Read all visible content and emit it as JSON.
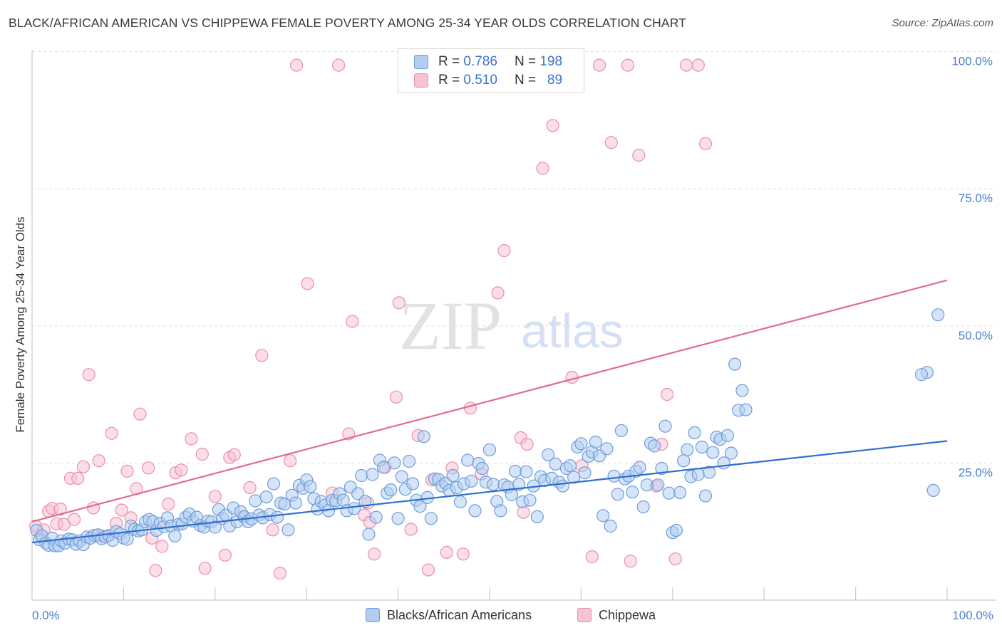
{
  "title": "BLACK/AFRICAN AMERICAN VS CHIPPEWA FEMALE POVERTY AMONG 25-34 YEAR OLDS CORRELATION CHART",
  "source": "Source: ZipAtlas.com",
  "watermark": {
    "zip": "ZIP",
    "atlas": "atlas"
  },
  "legend_top": {
    "rows": [
      {
        "r_label": "R =",
        "r_value": "0.786",
        "n_label": "N =",
        "n_value": "198"
      },
      {
        "r_label": "R =",
        "r_value": "0.510",
        "n_label": "N =",
        "n_value": "89"
      }
    ]
  },
  "legend_bottom": {
    "items": [
      "Blacks/African Americans",
      "Chippewa"
    ]
  },
  "colors": {
    "blue_fill": "#b3cdf0",
    "blue_stroke": "#6f9ddb",
    "blue_line": "#2f6fcf",
    "pink_fill": "#f7c3d3",
    "pink_stroke": "#ea8fab",
    "pink_line": "#e06b94",
    "tick_text": "#4a7fd0",
    "grid": "#dedede"
  },
  "chart_data": {
    "type": "scatter",
    "title": "BLACK/AFRICAN AMERICAN VS CHIPPEWA FEMALE POVERTY AMONG 25-34 YEAR OLDS CORRELATION CHART",
    "xlabel": "",
    "ylabel": "Female Poverty Among 25-34 Year Olds",
    "x_tick_labels": [
      "0.0%",
      "100.0%"
    ],
    "y_tick_labels": [
      "25.0%",
      "50.0%",
      "75.0%",
      "100.0%"
    ],
    "y_ticks": [
      25,
      50,
      75,
      100
    ],
    "xlim": [
      0,
      100
    ],
    "ylim": [
      2.5,
      101.5
    ],
    "grid": true,
    "legend_position": "top-center",
    "series": [
      {
        "name": "Blacks/African Americans",
        "R": 0.786,
        "N": 198,
        "trend": {
          "x": [
            0,
            100
          ],
          "y": [
            13.0,
            31.5
          ]
        },
        "points": [
          [
            0.5,
            15.2
          ],
          [
            0.8,
            13.5
          ],
          [
            1.1,
            14.2
          ],
          [
            1.5,
            12.9
          ],
          [
            1.8,
            12.5
          ],
          [
            2.2,
            13.8
          ],
          [
            2.5,
            12.4
          ],
          [
            2.9,
            12.4
          ],
          [
            3.2,
            13.3
          ],
          [
            3.6,
            12.9
          ],
          [
            4.0,
            13.6
          ],
          [
            4.4,
            13.5
          ],
          [
            4.8,
            12.7
          ],
          [
            5.2,
            13.3
          ],
          [
            5.6,
            12.6
          ],
          [
            6.0,
            14.0
          ],
          [
            6.4,
            13.8
          ],
          [
            6.8,
            14.3
          ],
          [
            7.2,
            14.4
          ],
          [
            7.6,
            13.7
          ],
          [
            8.0,
            14.0
          ],
          [
            8.4,
            14.3
          ],
          [
            8.8,
            13.4
          ],
          [
            9.2,
            15.0
          ],
          [
            9.6,
            14.6
          ],
          [
            10.0,
            13.8
          ],
          [
            10.4,
            13.6
          ],
          [
            10.8,
            16.0
          ],
          [
            11.2,
            15.4
          ],
          [
            11.6,
            15.1
          ],
          [
            12.0,
            15.3
          ],
          [
            12.4,
            16.8
          ],
          [
            12.8,
            17.2
          ],
          [
            13.2,
            16.8
          ],
          [
            13.6,
            15.2
          ],
          [
            14.0,
            16.5
          ],
          [
            14.4,
            15.9
          ],
          [
            14.8,
            17.5
          ],
          [
            15.2,
            16.0
          ],
          [
            15.6,
            14.2
          ],
          [
            16.0,
            16.3
          ],
          [
            16.4,
            16.4
          ],
          [
            16.8,
            17.6
          ],
          [
            17.2,
            18.2
          ],
          [
            17.6,
            16.9
          ],
          [
            18.0,
            17.6
          ],
          [
            18.4,
            16.1
          ],
          [
            18.8,
            15.8
          ],
          [
            19.2,
            16.9
          ],
          [
            19.6,
            16.8
          ],
          [
            20.0,
            15.8
          ],
          [
            20.4,
            19.0
          ],
          [
            20.8,
            17.4
          ],
          [
            21.2,
            18.0
          ],
          [
            21.6,
            16.0
          ],
          [
            22.0,
            19.3
          ],
          [
            22.4,
            16.8
          ],
          [
            22.8,
            18.6
          ],
          [
            23.2,
            17.7
          ],
          [
            23.6,
            16.8
          ],
          [
            24.0,
            17.3
          ],
          [
            24.4,
            20.6
          ],
          [
            24.8,
            18.0
          ],
          [
            25.2,
            17.5
          ],
          [
            25.6,
            21.3
          ],
          [
            26.0,
            18.1
          ],
          [
            26.4,
            23.7
          ],
          [
            26.8,
            17.6
          ],
          [
            27.2,
            20.2
          ],
          [
            27.6,
            20.0
          ],
          [
            28.0,
            15.3
          ],
          [
            28.4,
            21.6
          ],
          [
            28.8,
            20.2
          ],
          [
            29.2,
            23.4
          ],
          [
            29.6,
            22.9
          ],
          [
            30.0,
            24.4
          ],
          [
            30.4,
            23.2
          ],
          [
            30.8,
            21.0
          ],
          [
            31.2,
            19.1
          ],
          [
            31.6,
            20.5
          ],
          [
            32.0,
            19.8
          ],
          [
            32.4,
            18.8
          ],
          [
            32.8,
            20.7
          ],
          [
            33.2,
            20.6
          ],
          [
            33.6,
            21.9
          ],
          [
            34.0,
            20.7
          ],
          [
            34.4,
            18.8
          ],
          [
            34.8,
            23.1
          ],
          [
            35.2,
            19.2
          ],
          [
            35.6,
            21.9
          ],
          [
            36.0,
            25.2
          ],
          [
            36.4,
            20.5
          ],
          [
            36.8,
            14.5
          ],
          [
            37.2,
            25.4
          ],
          [
            37.6,
            17.6
          ],
          [
            38.0,
            28.0
          ],
          [
            38.4,
            26.7
          ],
          [
            38.8,
            22.0
          ],
          [
            39.2,
            22.6
          ],
          [
            39.6,
            27.5
          ],
          [
            40.0,
            17.4
          ],
          [
            40.4,
            25.0
          ],
          [
            40.8,
            22.7
          ],
          [
            41.2,
            27.8
          ],
          [
            41.6,
            23.7
          ],
          [
            42.0,
            20.7
          ],
          [
            42.4,
            19.6
          ],
          [
            42.8,
            32.3
          ],
          [
            43.2,
            21.2
          ],
          [
            43.6,
            17.4
          ],
          [
            44.0,
            24.6
          ],
          [
            44.4,
            24.5
          ],
          [
            44.8,
            23.3
          ],
          [
            45.2,
            23.8
          ],
          [
            45.6,
            22.5
          ],
          [
            46.0,
            25.2
          ],
          [
            46.4,
            23.0
          ],
          [
            46.8,
            20.4
          ],
          [
            47.2,
            23.7
          ],
          [
            47.6,
            28.0
          ],
          [
            48.0,
            24.2
          ],
          [
            48.4,
            18.8
          ],
          [
            48.8,
            27.4
          ],
          [
            49.2,
            26.5
          ],
          [
            49.6,
            24.0
          ],
          [
            50.0,
            29.9
          ],
          [
            50.4,
            23.6
          ],
          [
            50.8,
            20.5
          ],
          [
            51.2,
            18.8
          ],
          [
            51.6,
            23.5
          ],
          [
            52.0,
            23.1
          ],
          [
            52.4,
            21.7
          ],
          [
            52.8,
            26.0
          ],
          [
            53.2,
            23.6
          ],
          [
            53.6,
            20.4
          ],
          [
            54.0,
            25.9
          ],
          [
            54.4,
            20.7
          ],
          [
            54.8,
            23.3
          ],
          [
            55.2,
            17.7
          ],
          [
            55.6,
            25.0
          ],
          [
            56.0,
            24.3
          ],
          [
            56.4,
            29.0
          ],
          [
            56.8,
            24.7
          ],
          [
            57.2,
            27.3
          ],
          [
            57.6,
            24.0
          ],
          [
            58.0,
            23.3
          ],
          [
            58.4,
            26.5
          ],
          [
            58.8,
            27.0
          ],
          [
            59.2,
            24.9
          ],
          [
            59.6,
            30.4
          ],
          [
            60.0,
            31.0
          ],
          [
            60.4,
            25.7
          ],
          [
            60.8,
            28.7
          ],
          [
            61.2,
            29.5
          ],
          [
            61.6,
            31.3
          ],
          [
            62.0,
            28.8
          ],
          [
            62.4,
            17.9
          ],
          [
            62.8,
            30.1
          ],
          [
            63.2,
            16.0
          ],
          [
            63.6,
            25.1
          ],
          [
            64.0,
            21.8
          ],
          [
            64.4,
            33.4
          ],
          [
            64.8,
            24.6
          ],
          [
            65.2,
            25.1
          ],
          [
            65.6,
            22.2
          ],
          [
            66.0,
            26.0
          ],
          [
            66.4,
            26.7
          ],
          [
            66.8,
            19.5
          ],
          [
            67.2,
            23.5
          ],
          [
            67.6,
            31.1
          ],
          [
            68.0,
            30.6
          ],
          [
            68.4,
            23.5
          ],
          [
            68.8,
            26.5
          ],
          [
            69.2,
            34.2
          ],
          [
            69.6,
            22.0
          ],
          [
            70.0,
            14.8
          ],
          [
            70.4,
            15.2
          ],
          [
            70.8,
            22.1
          ],
          [
            71.2,
            27.9
          ],
          [
            71.6,
            29.9
          ],
          [
            72.0,
            25.0
          ],
          [
            72.4,
            33.0
          ],
          [
            72.8,
            25.4
          ],
          [
            73.2,
            30.4
          ],
          [
            73.6,
            21.5
          ],
          [
            74.0,
            25.8
          ],
          [
            74.4,
            29.4
          ],
          [
            74.8,
            32.2
          ],
          [
            75.2,
            31.8
          ],
          [
            75.6,
            27.5
          ],
          [
            76.0,
            32.5
          ],
          [
            76.4,
            29.3
          ],
          [
            76.8,
            45.5
          ],
          [
            77.2,
            37.1
          ],
          [
            77.6,
            40.7
          ],
          [
            78.0,
            37.2
          ],
          [
            99.0,
            54.5
          ],
          [
            98.5,
            22.5
          ],
          [
            97.8,
            44.0
          ],
          [
            97.2,
            43.6
          ]
        ]
      },
      {
        "name": "Chippewa",
        "R": 0.51,
        "N": 89,
        "trend": {
          "x": [
            0,
            100
          ],
          "y": [
            16.8,
            60.8
          ]
        },
        "points": [
          [
            0.4,
            16.0
          ],
          [
            0.9,
            14.4
          ],
          [
            1.3,
            15.3
          ],
          [
            1.8,
            18.7
          ],
          [
            2.2,
            19.2
          ],
          [
            2.7,
            16.4
          ],
          [
            3.1,
            19.1
          ],
          [
            3.5,
            16.3
          ],
          [
            4.2,
            24.7
          ],
          [
            4.6,
            17.2
          ],
          [
            5.0,
            24.7
          ],
          [
            5.6,
            26.8
          ],
          [
            6.2,
            43.6
          ],
          [
            6.7,
            19.3
          ],
          [
            7.3,
            27.9
          ],
          [
            7.6,
            14.2
          ],
          [
            8.2,
            14.1
          ],
          [
            8.7,
            32.9
          ],
          [
            9.2,
            16.5
          ],
          [
            9.8,
            18.9
          ],
          [
            10.4,
            26.0
          ],
          [
            10.8,
            17.5
          ],
          [
            11.4,
            22.8
          ],
          [
            11.8,
            36.4
          ],
          [
            12.7,
            26.6
          ],
          [
            13.1,
            13.8
          ],
          [
            13.5,
            7.9
          ],
          [
            14.2,
            12.3
          ],
          [
            14.9,
            20.0
          ],
          [
            15.7,
            25.7
          ],
          [
            16.3,
            26.2
          ],
          [
            17.4,
            31.9
          ],
          [
            18.6,
            29.1
          ],
          [
            18.9,
            8.3
          ],
          [
            20.0,
            21.4
          ],
          [
            21.1,
            10.7
          ],
          [
            21.6,
            28.5
          ],
          [
            22.1,
            29.0
          ],
          [
            23.1,
            17.7
          ],
          [
            23.8,
            23.0
          ],
          [
            25.1,
            47.1
          ],
          [
            26.3,
            15.3
          ],
          [
            27.1,
            7.4
          ],
          [
            28.2,
            27.9
          ],
          [
            28.9,
            100.0
          ],
          [
            30.1,
            60.2
          ],
          [
            32.8,
            22.0
          ],
          [
            33.5,
            100.0
          ],
          [
            34.6,
            32.8
          ],
          [
            35.0,
            53.3
          ],
          [
            36.3,
            18.0
          ],
          [
            36.7,
            20.2
          ],
          [
            36.9,
            16.7
          ],
          [
            37.4,
            10.9
          ],
          [
            38.6,
            26.7
          ],
          [
            39.8,
            39.5
          ],
          [
            40.1,
            56.7
          ],
          [
            41.4,
            15.4
          ],
          [
            42.2,
            32.5
          ],
          [
            43.3,
            8.0
          ],
          [
            43.7,
            24.4
          ],
          [
            45.3,
            11.2
          ],
          [
            45.9,
            26.6
          ],
          [
            47.1,
            10.9
          ],
          [
            47.9,
            37.5
          ],
          [
            49.1,
            25.5
          ],
          [
            50.0,
            100.0
          ],
          [
            50.9,
            58.5
          ],
          [
            51.6,
            66.2
          ],
          [
            53.4,
            32.1
          ],
          [
            53.7,
            18.5
          ],
          [
            54.1,
            30.9
          ],
          [
            55.8,
            81.2
          ],
          [
            56.9,
            89.0
          ],
          [
            59.0,
            43.1
          ],
          [
            60.1,
            27.0
          ],
          [
            61.2,
            10.4
          ],
          [
            62.0,
            100.0
          ],
          [
            63.3,
            85.9
          ],
          [
            65.1,
            100.0
          ],
          [
            65.4,
            9.6
          ],
          [
            66.3,
            83.6
          ],
          [
            68.2,
            23.3
          ],
          [
            68.8,
            30.9
          ],
          [
            69.4,
            40.0
          ],
          [
            70.3,
            10.0
          ],
          [
            71.5,
            100.0
          ],
          [
            72.8,
            100.0
          ],
          [
            73.6,
            85.7
          ]
        ]
      }
    ]
  }
}
